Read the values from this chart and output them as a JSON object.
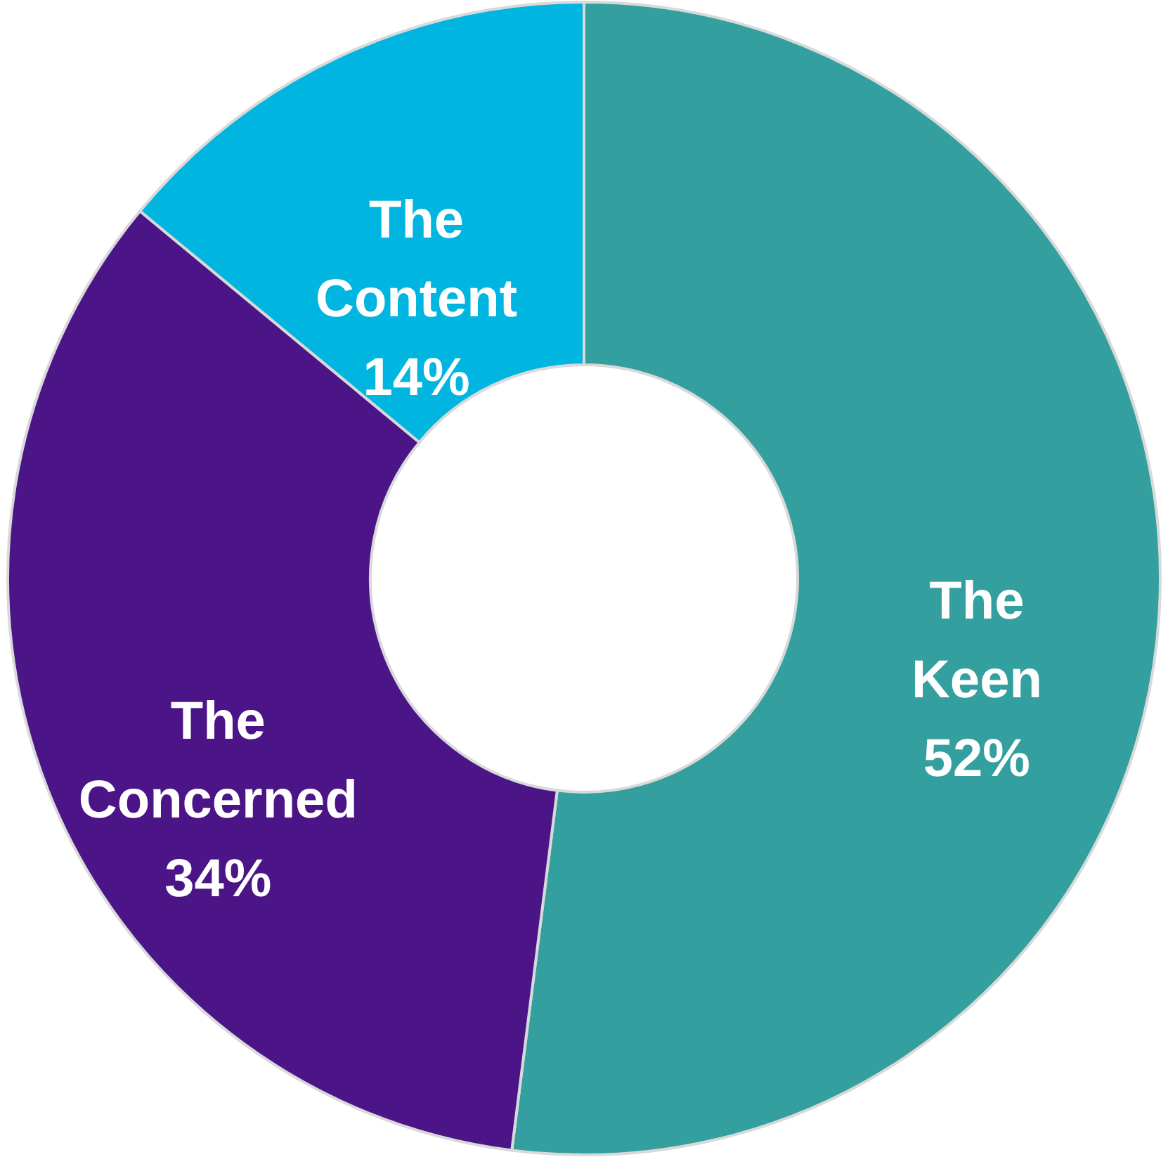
{
  "chart_data": {
    "type": "donut",
    "categories": [
      "The Keen",
      "The Concerned",
      "The Content"
    ],
    "values": [
      52,
      34,
      14
    ],
    "colors": [
      "#339f9f",
      "#4b1587",
      "#00b5e0"
    ],
    "value_labels": [
      "52%",
      "34%",
      "14%"
    ]
  }
}
